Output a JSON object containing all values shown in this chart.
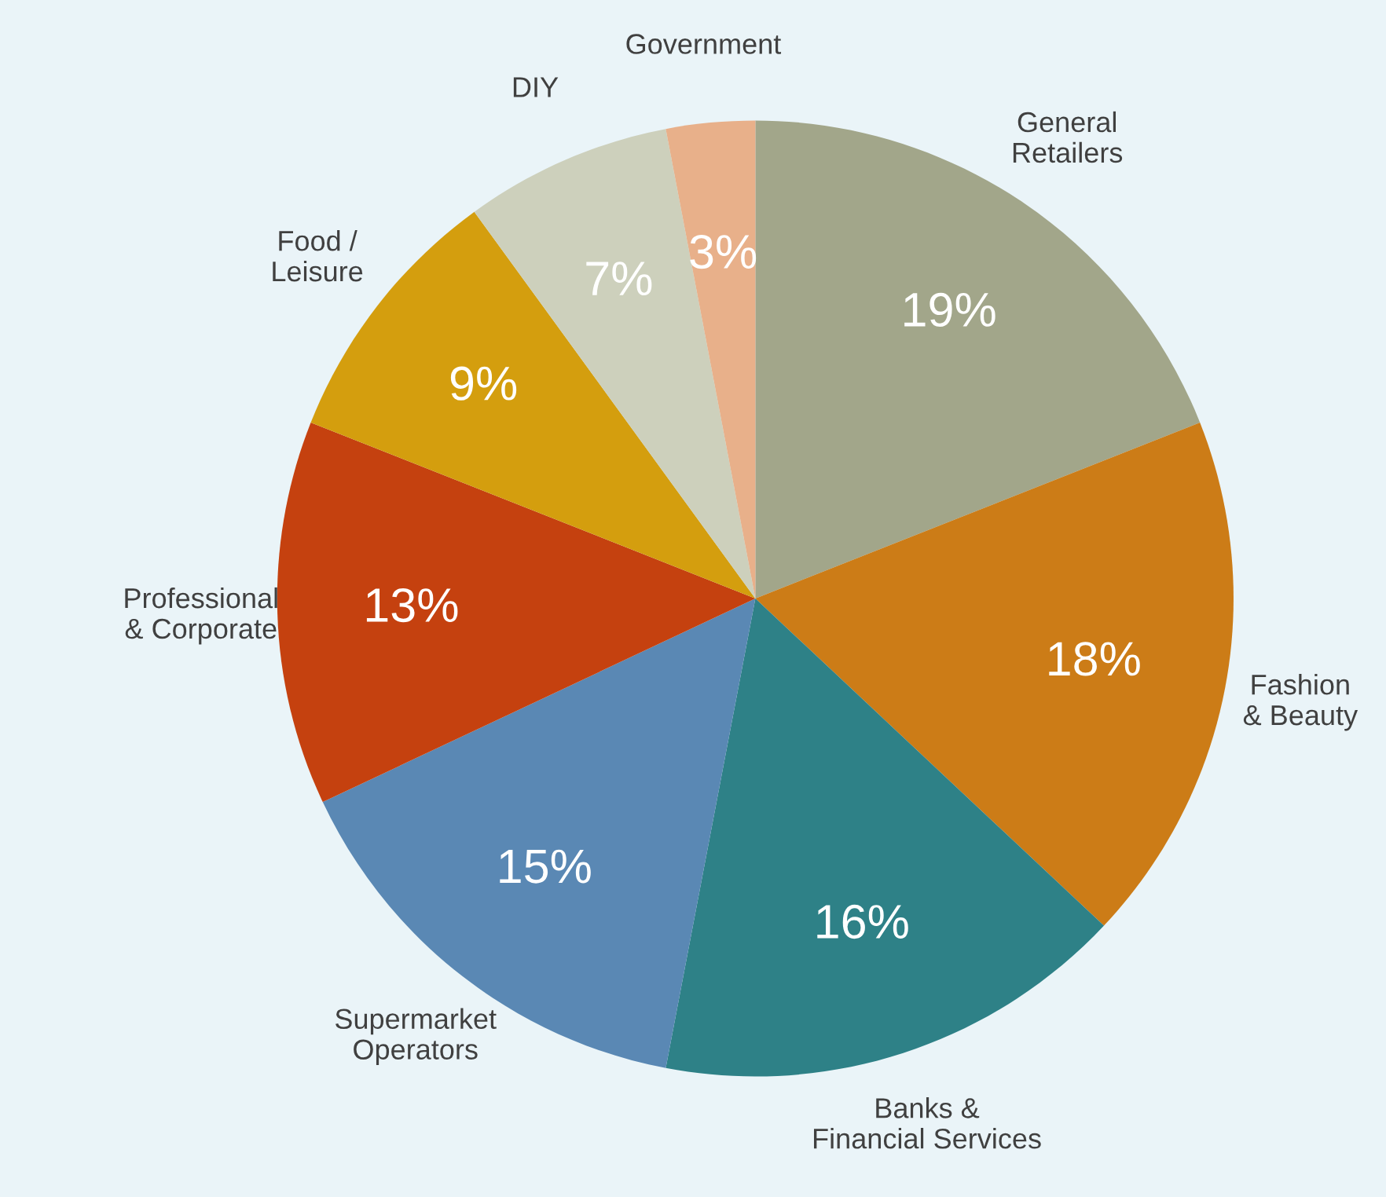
{
  "chart_data": {
    "type": "pie",
    "categories": [
      "General\nRetailers",
      "Fashion\n& Beauty",
      "Banks &\nFinancial Services",
      "Supermarket\nOperators",
      "Professional\n& Corporate",
      "Food /\nLeisure",
      "DIY",
      "Government"
    ],
    "values": [
      19,
      18,
      16,
      15,
      13,
      9,
      7,
      3
    ],
    "colors": [
      "#a2a68a",
      "#cc7c17",
      "#2e8187",
      "#5a88b4",
      "#c5410f",
      "#d49e0e",
      "#cdd0bc",
      "#e8b08a"
    ],
    "value_labels": [
      "19%",
      "18%",
      "16%",
      "15%",
      "13%",
      "9%",
      "7%",
      "3%"
    ],
    "legend": false
  }
}
